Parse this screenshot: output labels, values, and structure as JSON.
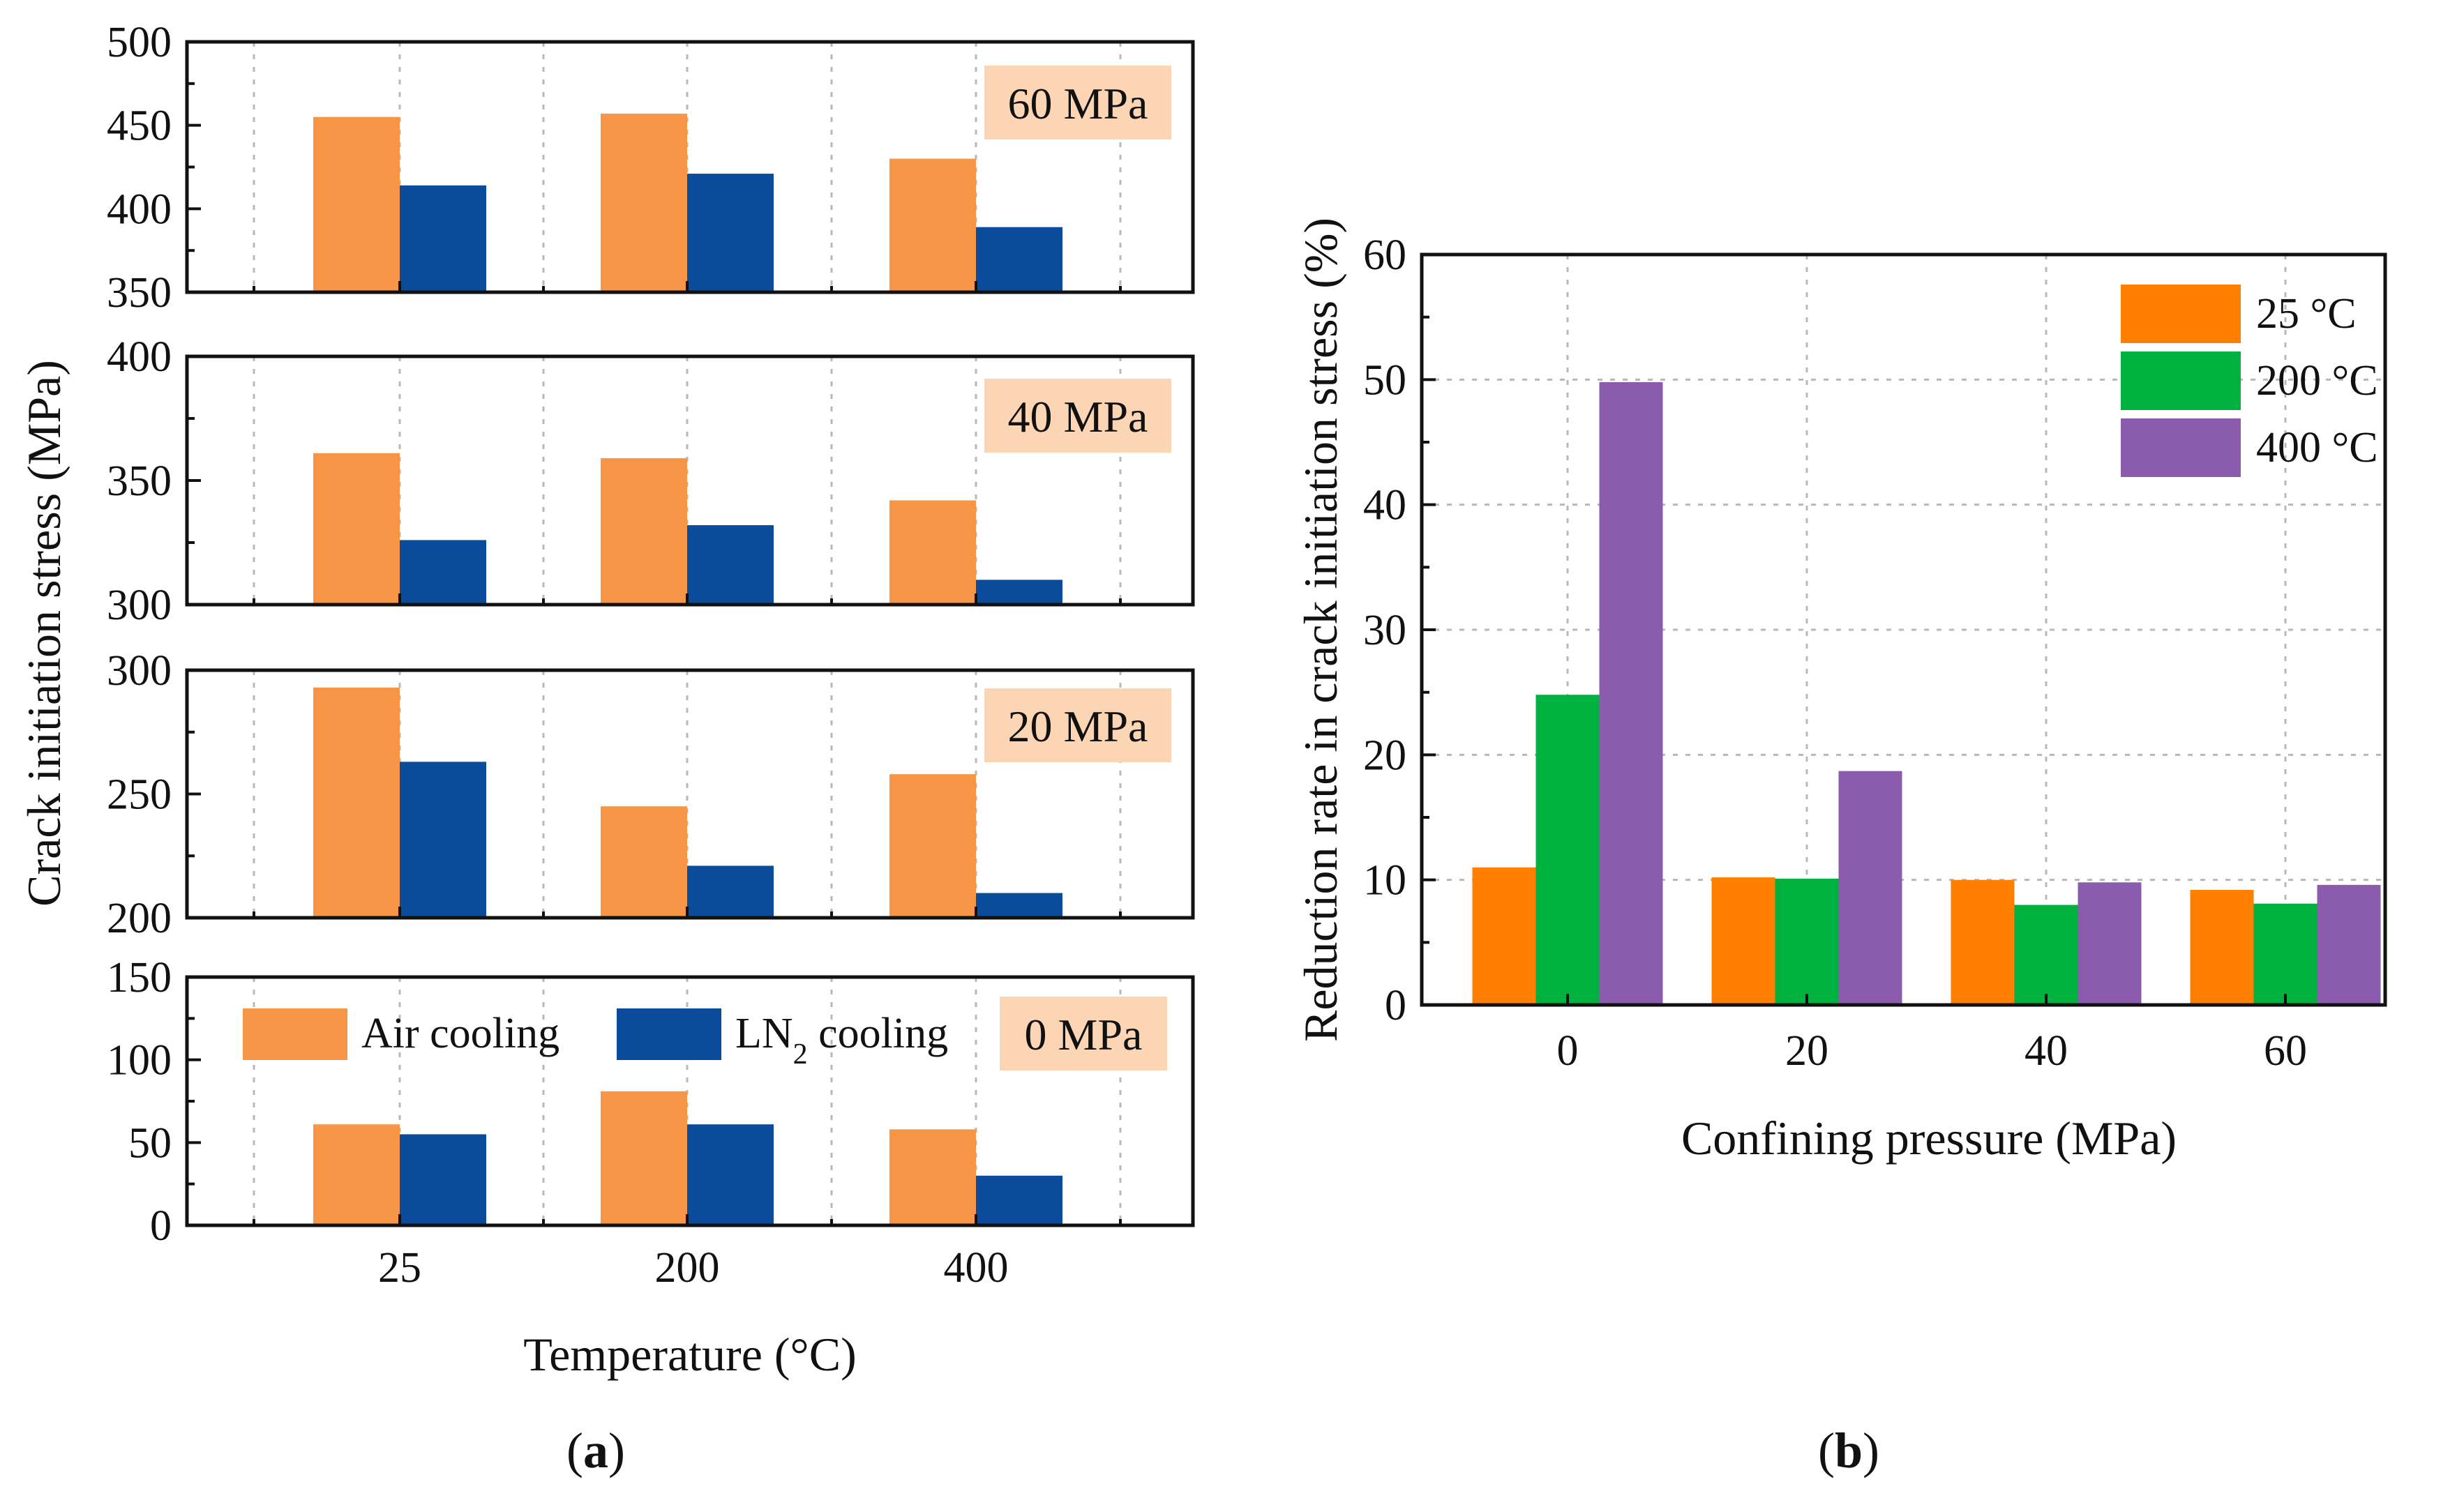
{
  "figure": {
    "caption_a": {
      "open": "(",
      "letter": "a",
      "close": ")"
    },
    "caption_b": {
      "open": "(",
      "letter": "b",
      "close": ")"
    }
  },
  "colors": {
    "air": "#F79646",
    "ln2": "#0A4C9B",
    "t25": "#FF8000",
    "t200": "#00B140",
    "t400": "#8B5CAD",
    "badge": "#FCD5B5"
  },
  "chart_data": [
    {
      "id": "a",
      "type": "bar",
      "title": "",
      "xlabel": "Temperature (°C)",
      "ylabel": "Crack initiation stress (MPa)",
      "categories": [
        "25",
        "200",
        "400"
      ],
      "legend": [
        {
          "text": "Air cooling",
          "color": "air"
        },
        {
          "text": "LN",
          "sub": "2",
          "suffix": " cooling",
          "color": "ln2"
        }
      ],
      "legend_location": "top-left of bottom panel",
      "panels": [
        {
          "label": "60 MPa",
          "ylim": [
            350,
            500
          ],
          "yticks": [
            "350",
            "400",
            "450",
            "500"
          ],
          "series": [
            {
              "name": "Air cooling",
              "values": [
                455,
                457,
                430
              ]
            },
            {
              "name": "LN2 cooling",
              "values": [
                414,
                421,
                389
              ]
            }
          ]
        },
        {
          "label": "40 MPa",
          "ylim": [
            300,
            400
          ],
          "yticks": [
            "300",
            "350",
            "400"
          ],
          "series": [
            {
              "name": "Air cooling",
              "values": [
                361,
                359,
                342
              ]
            },
            {
              "name": "LN2 cooling",
              "values": [
                326,
                332,
                310
              ]
            }
          ]
        },
        {
          "label": "20 MPa",
          "ylim": [
            200,
            300
          ],
          "yticks": [
            "200",
            "250",
            "300"
          ],
          "series": [
            {
              "name": "Air cooling",
              "values": [
                293,
                245,
                258
              ]
            },
            {
              "name": "LN2 cooling",
              "values": [
                263,
                221,
                210
              ]
            }
          ]
        },
        {
          "label": "0 MPa",
          "ylim": [
            0,
            150
          ],
          "yticks": [
            "0",
            "50",
            "100",
            "150"
          ],
          "series": [
            {
              "name": "Air cooling",
              "values": [
                61,
                81,
                58
              ]
            },
            {
              "name": "LN2 cooling",
              "values": [
                55,
                61,
                30
              ]
            }
          ]
        }
      ]
    },
    {
      "id": "b",
      "type": "bar",
      "title": "",
      "xlabel": "Confining pressure (MPa)",
      "ylabel": "Reduction rate in crack initiation stress (%)",
      "categories": [
        "0",
        "20",
        "40",
        "60"
      ],
      "ylim": [
        0,
        60
      ],
      "yticks": [
        "0",
        "10",
        "20",
        "30",
        "40",
        "50",
        "60"
      ],
      "grid": true,
      "legend_location": "top-right",
      "series": [
        {
          "name": "25 °C",
          "color": "t25",
          "values": [
            11,
            10.2,
            10,
            9.2
          ]
        },
        {
          "name": "200 °C",
          "color": "t200",
          "values": [
            24.8,
            10.1,
            8,
            8.1
          ]
        },
        {
          "name": "400 °C",
          "color": "t400",
          "values": [
            49.8,
            18.7,
            9.8,
            9.6
          ]
        }
      ]
    }
  ]
}
